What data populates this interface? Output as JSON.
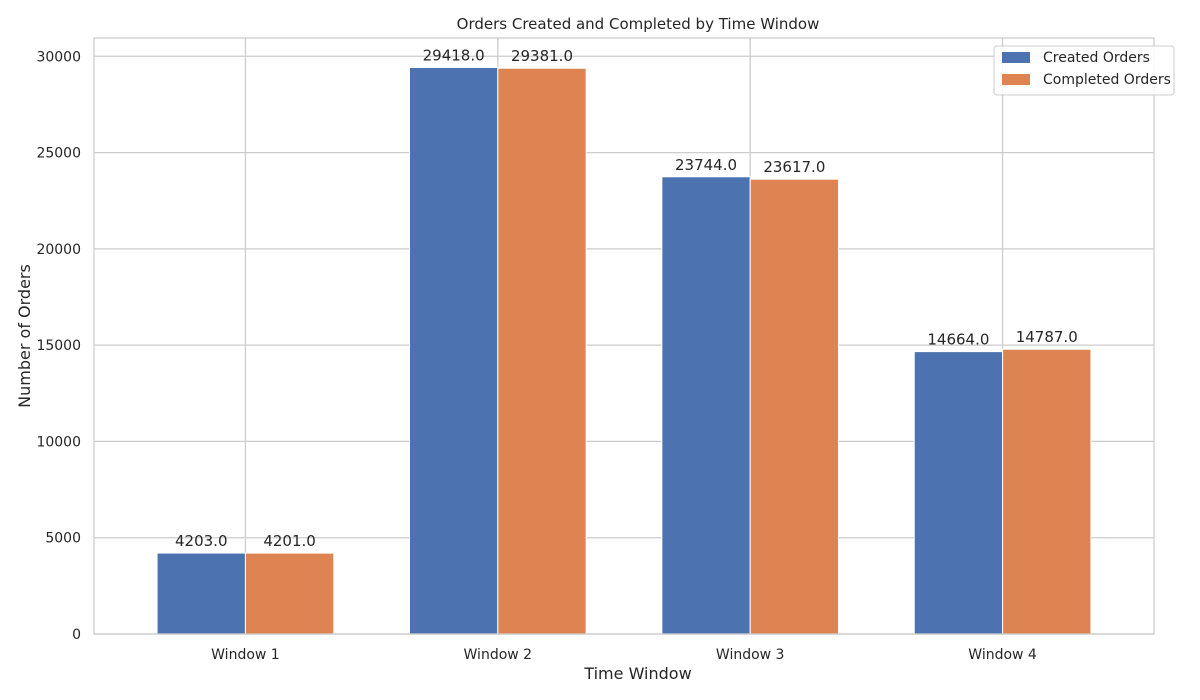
{
  "chart_data": {
    "type": "bar",
    "title": "Orders Created and Completed by Time Window",
    "xlabel": "Time Window",
    "ylabel": "Number of Orders",
    "categories": [
      "Window 1",
      "Window 2",
      "Window 3",
      "Window 4"
    ],
    "series": [
      {
        "name": "Created Orders",
        "values": [
          4203.0,
          29418.0,
          23744.0,
          14664.0
        ],
        "labels": [
          "4203.0",
          "29418.0",
          "23744.0",
          "14664.0"
        ],
        "color": "#4c72b0"
      },
      {
        "name": "Completed Orders",
        "values": [
          4201.0,
          29381.0,
          23617.0,
          14787.0
        ],
        "labels": [
          "4201.0",
          "29381.0",
          "23617.0",
          "14787.0"
        ],
        "color": "#dd8452"
      }
    ],
    "yticks": [
      0,
      5000,
      10000,
      15000,
      20000,
      25000,
      30000
    ],
    "ylim": [
      0,
      30950
    ],
    "grid": true,
    "legend_position": "top-right"
  }
}
